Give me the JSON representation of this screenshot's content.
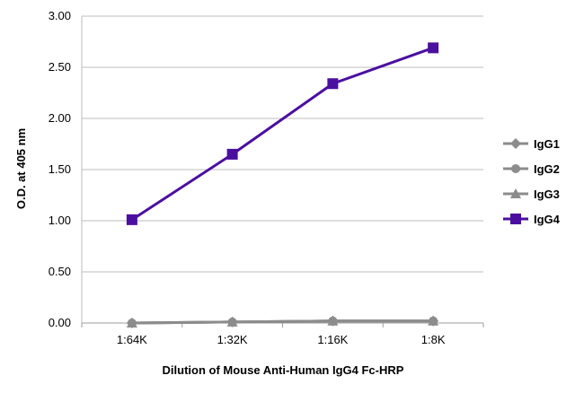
{
  "chart_data": {
    "type": "line",
    "title": "",
    "xlabel": "Dilution of Mouse Anti-Human IgG4 Fc-HRP",
    "ylabel": "O.D. at 405 nm",
    "categories": [
      "1:64K",
      "1:32K",
      "1:16K",
      "1:8K"
    ],
    "ylim": [
      0,
      3
    ],
    "yticks": [
      "0.00",
      "0.50",
      "1.00",
      "1.50",
      "2.00",
      "2.50",
      "3.00"
    ],
    "grid": true,
    "legend_position": "right",
    "series": [
      {
        "name": "IgG1",
        "values": [
          0.0,
          0.01,
          0.02,
          0.02
        ],
        "color": "#8c8c8c",
        "marker": "diamond"
      },
      {
        "name": "IgG2",
        "values": [
          0.0,
          0.01,
          0.02,
          0.02
        ],
        "color": "#8c8c8c",
        "marker": "circle"
      },
      {
        "name": "IgG3",
        "values": [
          0.0,
          0.01,
          0.02,
          0.02
        ],
        "color": "#8c8c8c",
        "marker": "triangle"
      },
      {
        "name": "IgG4",
        "values": [
          1.01,
          1.65,
          2.34,
          2.69
        ],
        "color": "#4b0fa0",
        "marker": "square"
      }
    ]
  }
}
